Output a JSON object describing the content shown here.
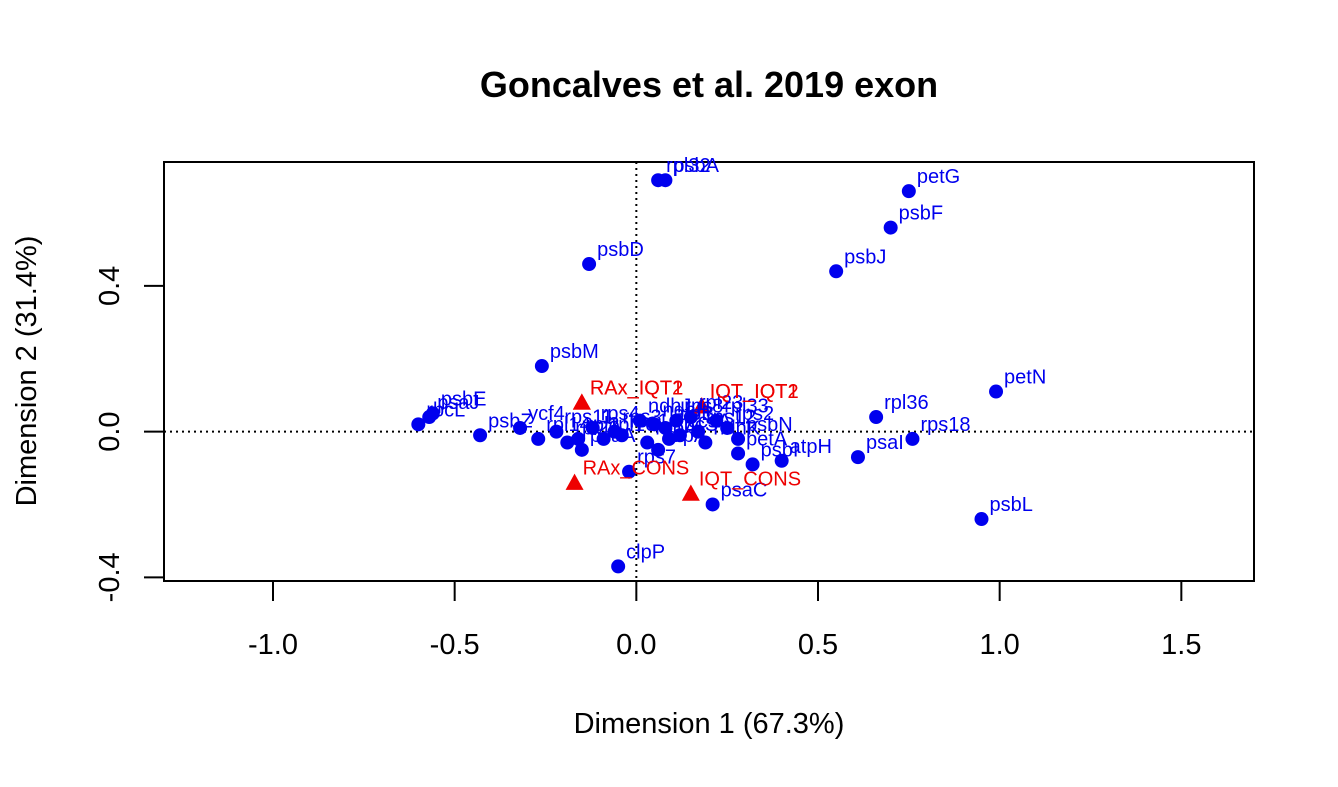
{
  "chart_data": {
    "type": "scatter",
    "title": "Goncalves et al. 2019 exon",
    "xlabel": "Dimension 1 (67.3%)",
    "ylabel": "Dimension 2 (31.4%)",
    "xlim": [
      -1.3,
      1.7
    ],
    "ylim": [
      -0.41,
      0.74
    ],
    "x_ticks": [
      -1.0,
      -0.5,
      0.0,
      0.5,
      1.0,
      1.5
    ],
    "x_tick_labels": [
      "-1.0",
      "-0.5",
      "0.0",
      "0.5",
      "1.0",
      "1.5"
    ],
    "y_ticks": [
      -0.4,
      0.0,
      0.4
    ],
    "y_tick_labels": [
      "-0.4",
      "0.0",
      "0.4"
    ],
    "reference_lines": {
      "x": 0,
      "y": 0,
      "style": "dotted"
    },
    "colors": {
      "rows": "#0000ee",
      "columns": "#ee0000",
      "axis": "#000000"
    },
    "series": [
      {
        "name": "genes",
        "marker": "circle",
        "color": "#0000ee",
        "points": [
          {
            "label": "rpl32",
            "x": 0.06,
            "y": 0.69
          },
          {
            "label": "psbA",
            "x": 0.08,
            "y": 0.69
          },
          {
            "label": "petG",
            "x": 0.75,
            "y": 0.66
          },
          {
            "label": "psbF",
            "x": 0.7,
            "y": 0.56
          },
          {
            "label": "psbD",
            "x": -0.13,
            "y": 0.46
          },
          {
            "label": "psbJ",
            "x": 0.55,
            "y": 0.44
          },
          {
            "label": "psbM",
            "x": -0.26,
            "y": 0.18
          },
          {
            "label": "petN",
            "x": 0.99,
            "y": 0.11
          },
          {
            "label": "rpl36",
            "x": 0.66,
            "y": 0.04
          },
          {
            "label": "rps18",
            "x": 0.76,
            "y": -0.02
          },
          {
            "label": "psbE",
            "x": -0.56,
            "y": 0.05
          },
          {
            "label": "psaJ",
            "x": -0.57,
            "y": 0.04
          },
          {
            "label": "rbcL",
            "x": -0.6,
            "y": 0.02
          },
          {
            "label": "psbZ",
            "x": -0.43,
            "y": -0.01
          },
          {
            "label": "ycf4",
            "x": -0.32,
            "y": 0.01
          },
          {
            "label": "rpl14",
            "x": -0.27,
            "y": -0.02
          },
          {
            "label": "rps11",
            "x": -0.22,
            "y": 0.0
          },
          {
            "label": "rpl20",
            "x": -0.19,
            "y": -0.03
          },
          {
            "label": "rpl2",
            "x": -0.16,
            "y": -0.02
          },
          {
            "label": "psaA",
            "x": -0.15,
            "y": -0.05
          },
          {
            "label": "rps4",
            "x": -0.12,
            "y": 0.01
          },
          {
            "label": "rpl16",
            "x": -0.09,
            "y": -0.02
          },
          {
            "label": "rps3",
            "x": -0.06,
            "y": 0.0
          },
          {
            "label": "rps14",
            "x": -0.04,
            "y": -0.01
          },
          {
            "label": "ndhJ",
            "x": 0.01,
            "y": 0.03
          },
          {
            "label": "rpoA",
            "x": 0.03,
            "y": -0.03
          },
          {
            "label": "ndhH",
            "x": 0.05,
            "y": 0.02
          },
          {
            "label": "atpA",
            "x": 0.06,
            "y": -0.05
          },
          {
            "label": "atpB",
            "x": 0.08,
            "y": 0.01
          },
          {
            "label": "rbcS",
            "x": 0.09,
            "y": -0.02
          },
          {
            "label": "rps8",
            "x": 0.11,
            "y": 0.03
          },
          {
            "label": "ccsA",
            "x": 0.12,
            "y": -0.01
          },
          {
            "label": "rpl23",
            "x": 0.15,
            "y": 0.04
          },
          {
            "label": "rps12",
            "x": 0.17,
            "y": 0.0
          },
          {
            "label": "ndhK",
            "x": 0.19,
            "y": -0.03
          },
          {
            "label": "rpl33",
            "x": 0.22,
            "y": 0.03
          },
          {
            "label": "rps2",
            "x": 0.25,
            "y": 0.01
          },
          {
            "label": "psbN",
            "x": 0.28,
            "y": -0.02
          },
          {
            "label": "petA",
            "x": 0.28,
            "y": -0.06
          },
          {
            "label": "psbI",
            "x": 0.32,
            "y": -0.09
          },
          {
            "label": "atpH",
            "x": 0.4,
            "y": -0.08
          },
          {
            "label": "psaI",
            "x": 0.61,
            "y": -0.07
          },
          {
            "label": "psaC",
            "x": 0.21,
            "y": -0.2
          },
          {
            "label": "rps7",
            "x": -0.02,
            "y": -0.11
          },
          {
            "label": "psbL",
            "x": 0.95,
            "y": -0.24
          },
          {
            "label": "clpP",
            "x": -0.05,
            "y": -0.37
          }
        ]
      },
      {
        "name": "samples",
        "marker": "triangle",
        "color": "#ee0000",
        "points": [
          {
            "label": "RAx_IQT1",
            "x": -0.15,
            "y": 0.08
          },
          {
            "label": "RAx_IQT2",
            "x": -0.15,
            "y": 0.08
          },
          {
            "label": "IQT_IQT1",
            "x": 0.18,
            "y": 0.07
          },
          {
            "label": "IQT_IQT2",
            "x": 0.18,
            "y": 0.07
          },
          {
            "label": "RAx_CONS",
            "x": -0.17,
            "y": -0.14
          },
          {
            "label": "IQT_CONS",
            "x": 0.15,
            "y": -0.17
          }
        ]
      }
    ]
  }
}
